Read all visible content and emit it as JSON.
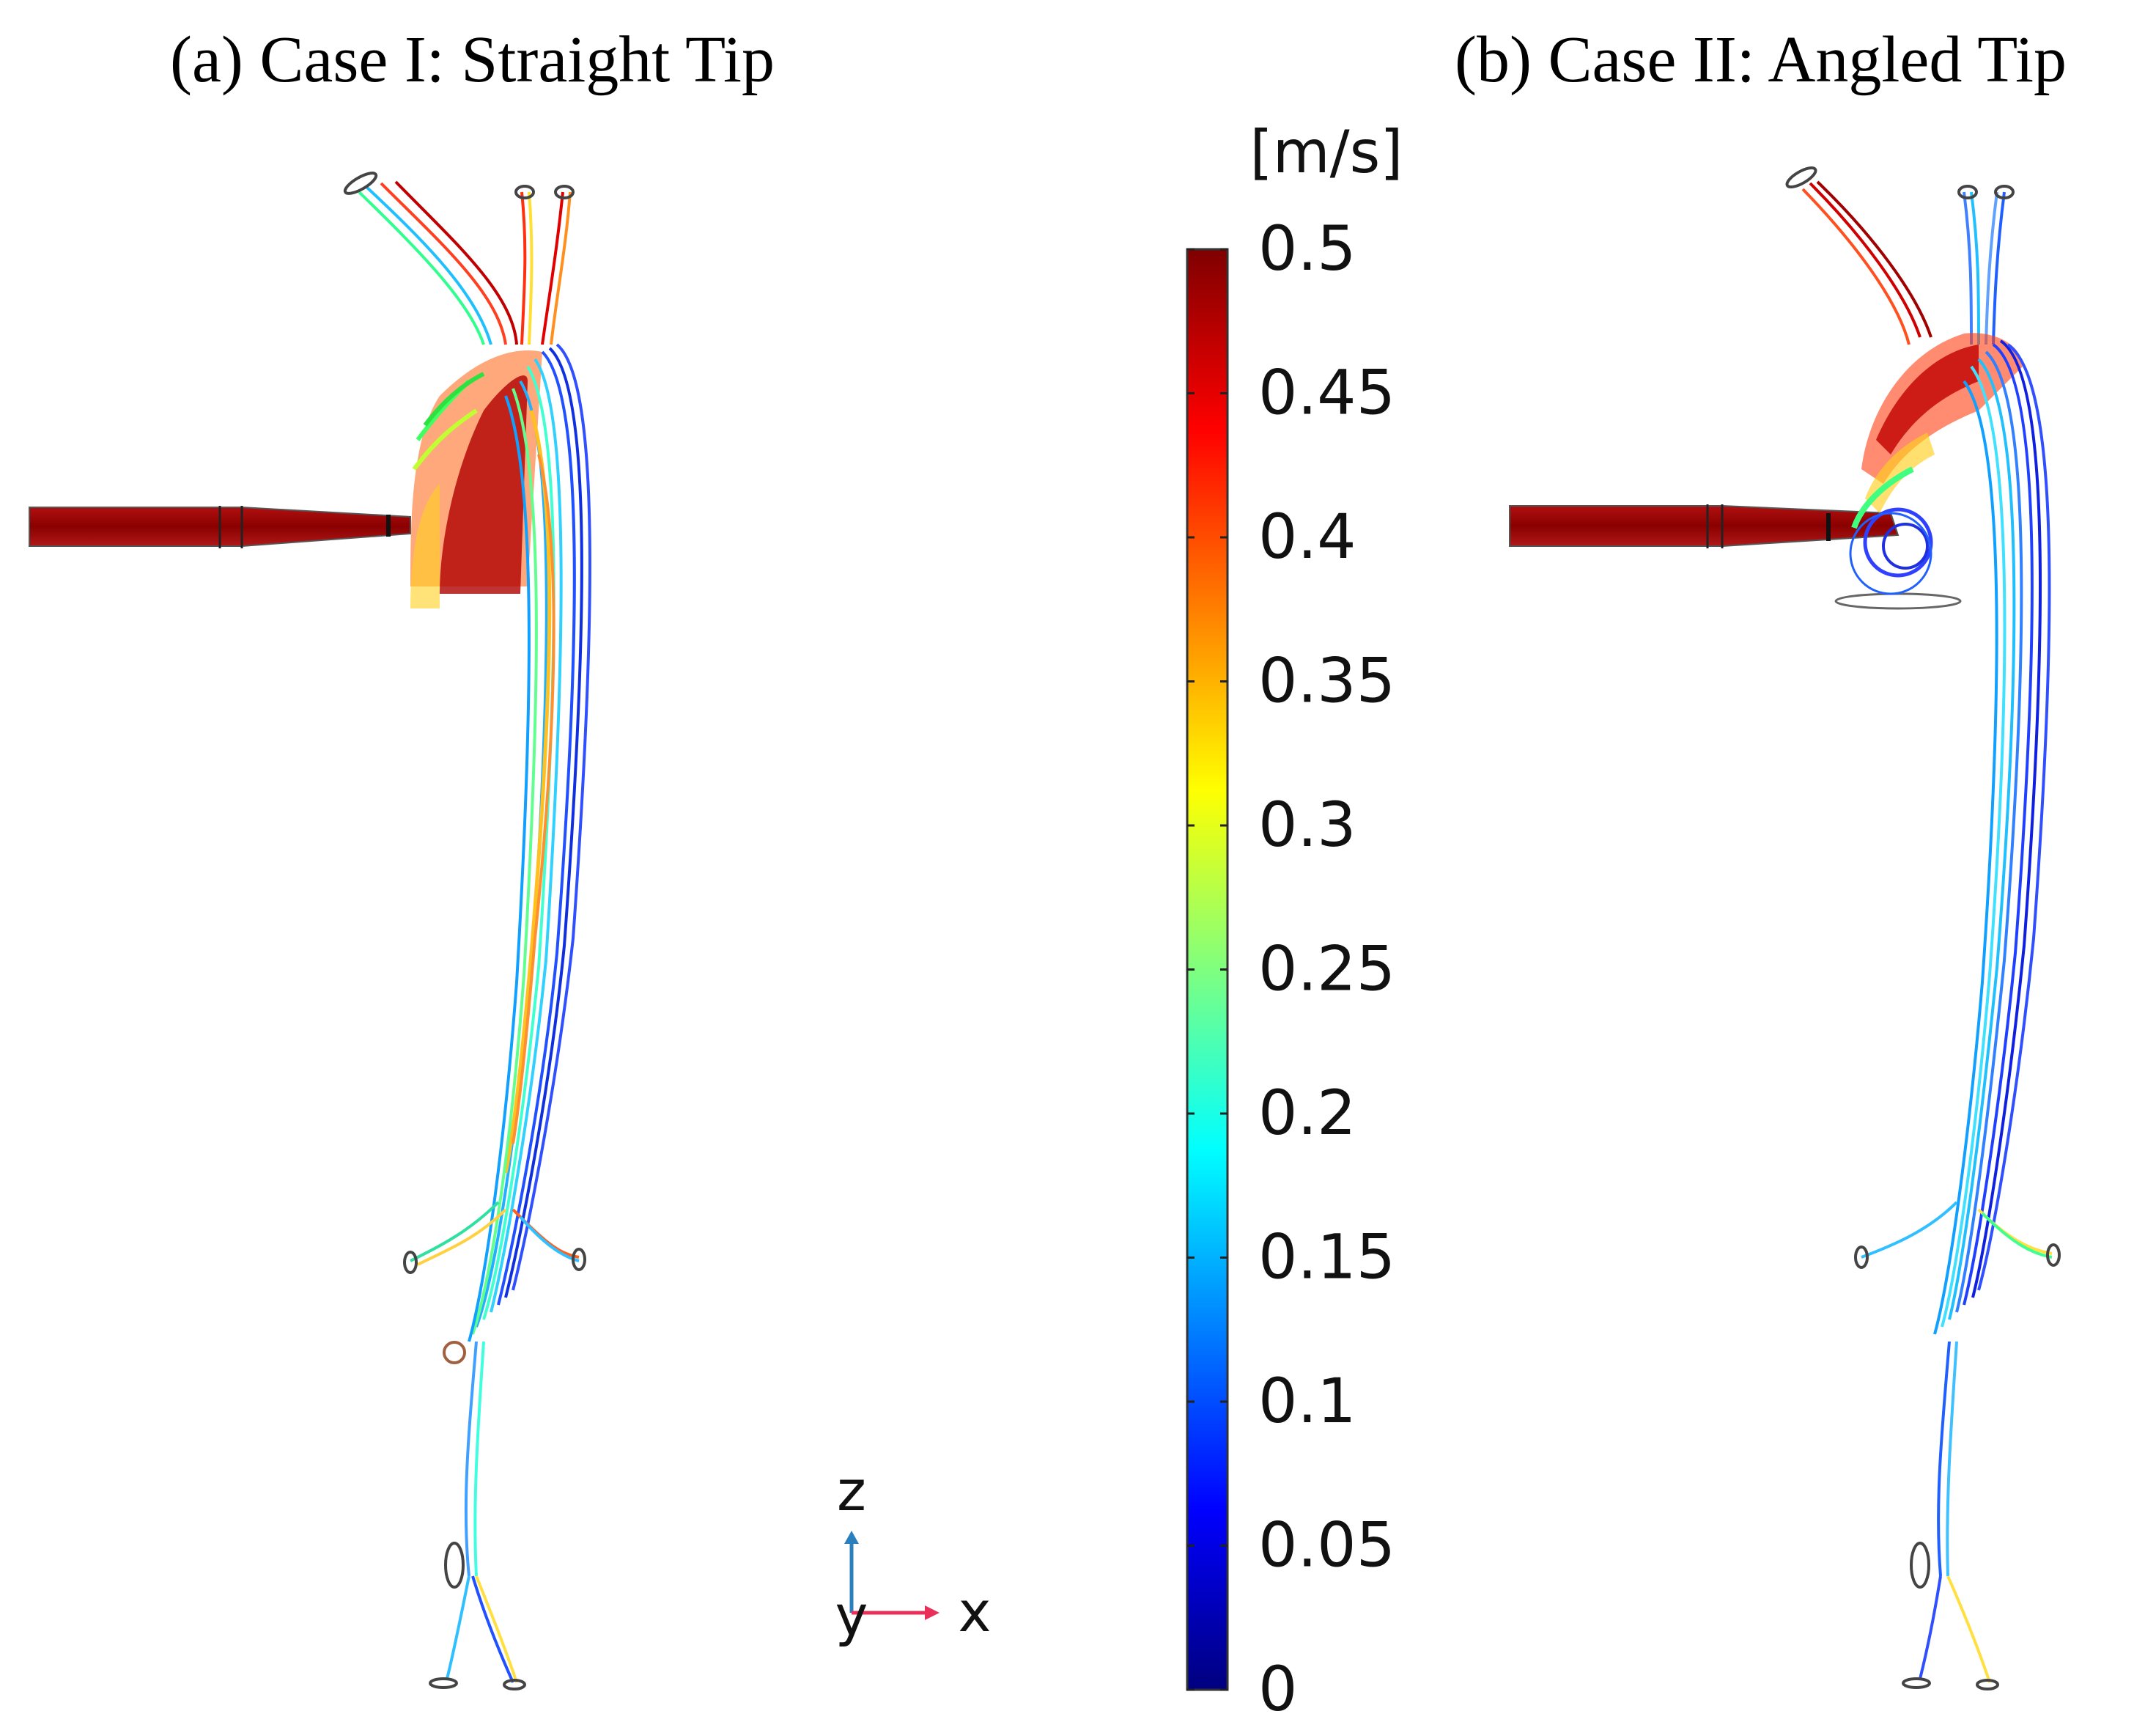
{
  "titles": {
    "a": "(a) Case I: Straight Tip",
    "b": "(b) Case II: Angled Tip"
  },
  "colorbar": {
    "unit": "[m/s]",
    "min": 0,
    "max": 0.5,
    "ticks": [
      "0.5",
      "0.45",
      "0.4",
      "0.35",
      "0.3",
      "0.25",
      "0.2",
      "0.15",
      "0.1",
      "0.05",
      "0"
    ],
    "tick_values": [
      0.5,
      0.45,
      0.4,
      0.35,
      0.3,
      0.25,
      0.2,
      0.15,
      0.1,
      0.05,
      0
    ],
    "colors": [
      "#00007f",
      "#0000ff",
      "#007fff",
      "#00ffff",
      "#7fff7f",
      "#ffff00",
      "#ff7f00",
      "#ff0000",
      "#7f0000"
    ]
  },
  "axes_triad": {
    "z_label": "z",
    "y_label": "y",
    "x_label": "x",
    "z_color": "#2a7fbf",
    "x_color": "#e8305a"
  }
}
